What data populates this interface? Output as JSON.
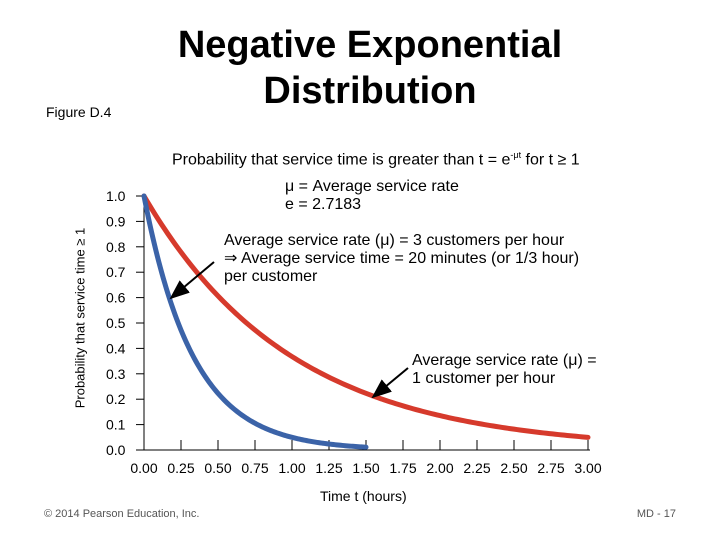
{
  "title": "Negative Exponential Distribution",
  "figure_label": "Figure D.4",
  "footer": {
    "copyright": "© 2014 Pearson Education, Inc.",
    "page": "MD - 17"
  },
  "chart_data": {
    "type": "line",
    "title": "Probability that service time is greater than t = e",
    "title_superscript": "-μt",
    "title_suffix": " for t ≥ 1",
    "ylabel": "Probability that service time ≥ 1",
    "xlabel": "Time t (hours)",
    "xlim": [
      0,
      3
    ],
    "ylim": [
      0,
      1
    ],
    "x_ticks": [
      "0.00",
      "0.25",
      "0.50",
      "0.75",
      "1.00",
      "1.25",
      "1.50",
      "1.75",
      "2.00",
      "2.25",
      "2.50",
      "2.75",
      "3.00"
    ],
    "y_ticks": [
      "0.0",
      "0.1",
      "0.2",
      "0.3",
      "0.4",
      "0.5",
      "0.6",
      "0.7",
      "0.8",
      "0.9",
      "1.0"
    ],
    "legend_note": {
      "line1": "μ = Average service rate",
      "line2": "e = 2.7183"
    },
    "series": [
      {
        "name": "Average service rate (μ) = 3 customers per hour",
        "mu": 3,
        "color": "#3b63a8",
        "x_end": 1.5,
        "annotation": [
          "Average service rate (μ) = 3 customers per hour",
          "⇒ Average service time = 20 minutes (or 1/3 hour)",
          "per customer"
        ]
      },
      {
        "name": "Average service rate (μ) = 1 customer per hour",
        "mu": 1,
        "color": "#d63a2c",
        "x_end": 3.0,
        "annotation": [
          "Average service rate (μ) =",
          "1 customer per hour"
        ]
      }
    ]
  }
}
